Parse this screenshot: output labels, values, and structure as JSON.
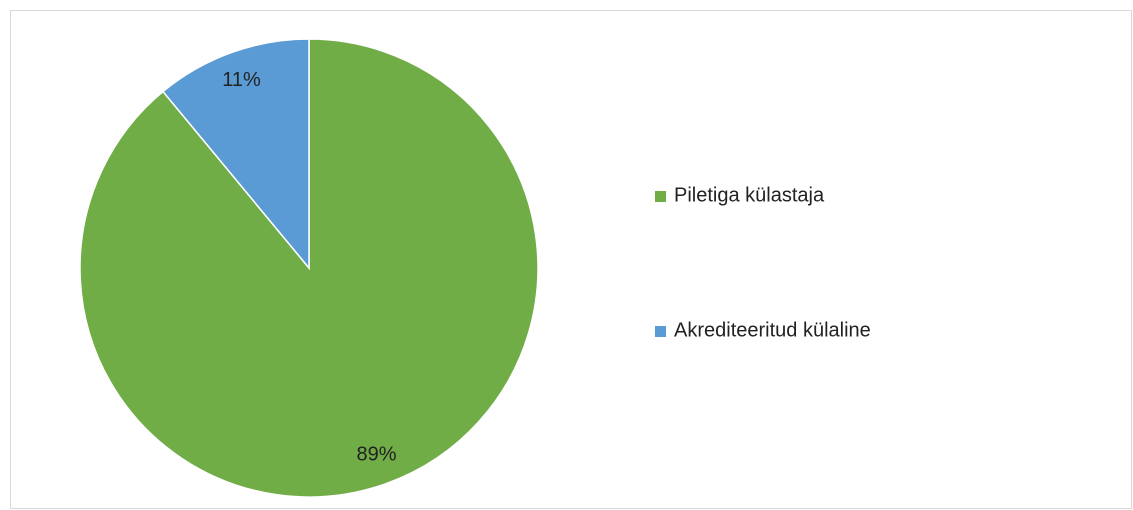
{
  "chart_data": {
    "type": "pie",
    "categories": [
      "Piletiga külastaja",
      "Akrediteeritud külaline"
    ],
    "values": [
      89,
      11
    ],
    "value_labels": [
      "89%",
      "11%"
    ],
    "colors": [
      "#70ad47",
      "#5b9bd5"
    ],
    "legend": "right"
  }
}
